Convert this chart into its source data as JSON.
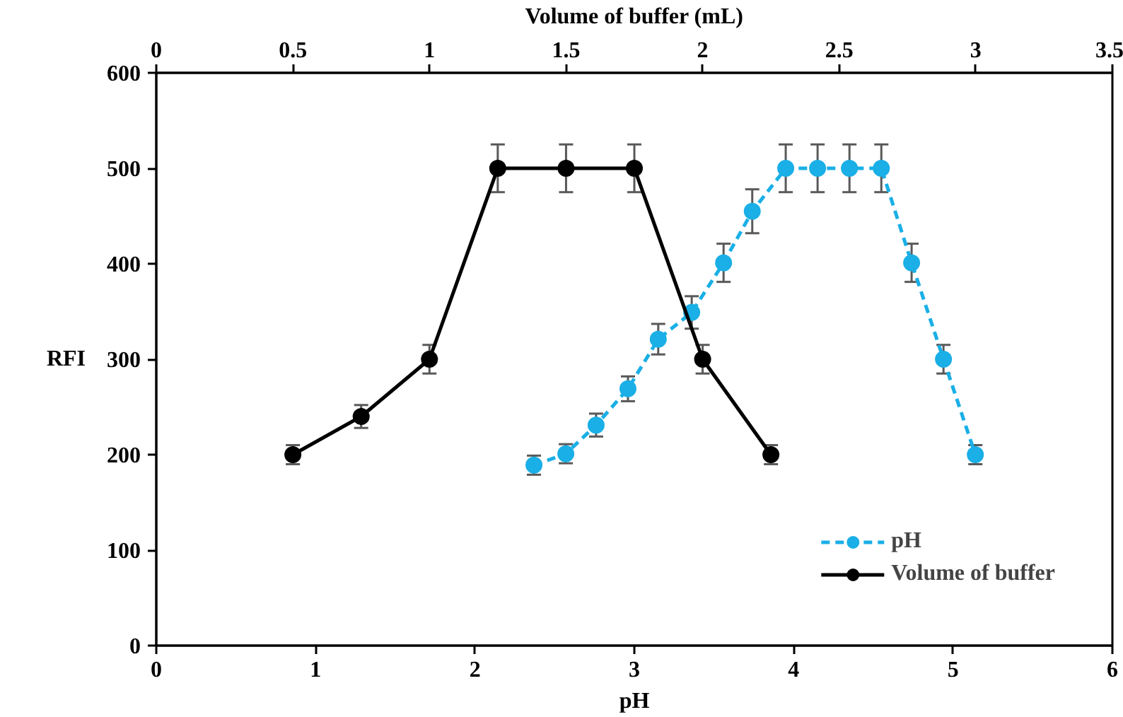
{
  "chart_data": {
    "type": "line",
    "xlabel": "pH",
    "ylabel": "RFI",
    "x2label": "Volume of buffer (mL)",
    "xlim": [
      0,
      6
    ],
    "xticks": [
      0,
      1,
      2,
      3,
      4,
      5,
      6
    ],
    "x2lim": [
      0,
      3.5
    ],
    "x2ticks": [
      0,
      0.5,
      1,
      1.5,
      2,
      2.5,
      3,
      3.5
    ],
    "ylim": [
      0,
      600
    ],
    "yticks": [
      0,
      100,
      200,
      300,
      400,
      500,
      600
    ],
    "grid": false,
    "legend": "bottom right",
    "marker": "circle",
    "series": [
      {
        "name": "pH",
        "color": "#1aafe6",
        "line_style": "dashed",
        "x": [
          2.37,
          2.57,
          2.76,
          2.96,
          3.15,
          3.36,
          3.56,
          3.74,
          3.95,
          4.15,
          4.35,
          4.55,
          4.74,
          4.94,
          5.14
        ],
        "values": [
          189,
          201,
          231,
          269,
          321,
          349,
          401,
          455,
          500,
          500,
          500,
          500,
          401,
          300,
          200
        ],
        "errors": [
          10,
          10,
          12,
          13,
          16,
          17,
          20,
          23,
          25,
          25,
          25,
          25,
          20,
          15,
          10
        ]
      },
      {
        "name": "Volume of buffer",
        "color": "#000000",
        "line_style": "solid",
        "axis": "x2",
        "x": [
          0.5,
          0.75,
          1,
          1.25,
          1.5,
          1.75,
          2,
          2.25
        ],
        "values": [
          200,
          240,
          300,
          500,
          500,
          500,
          300,
          200
        ],
        "errors": [
          10,
          12,
          15,
          25,
          25,
          25,
          15,
          10
        ]
      }
    ]
  }
}
